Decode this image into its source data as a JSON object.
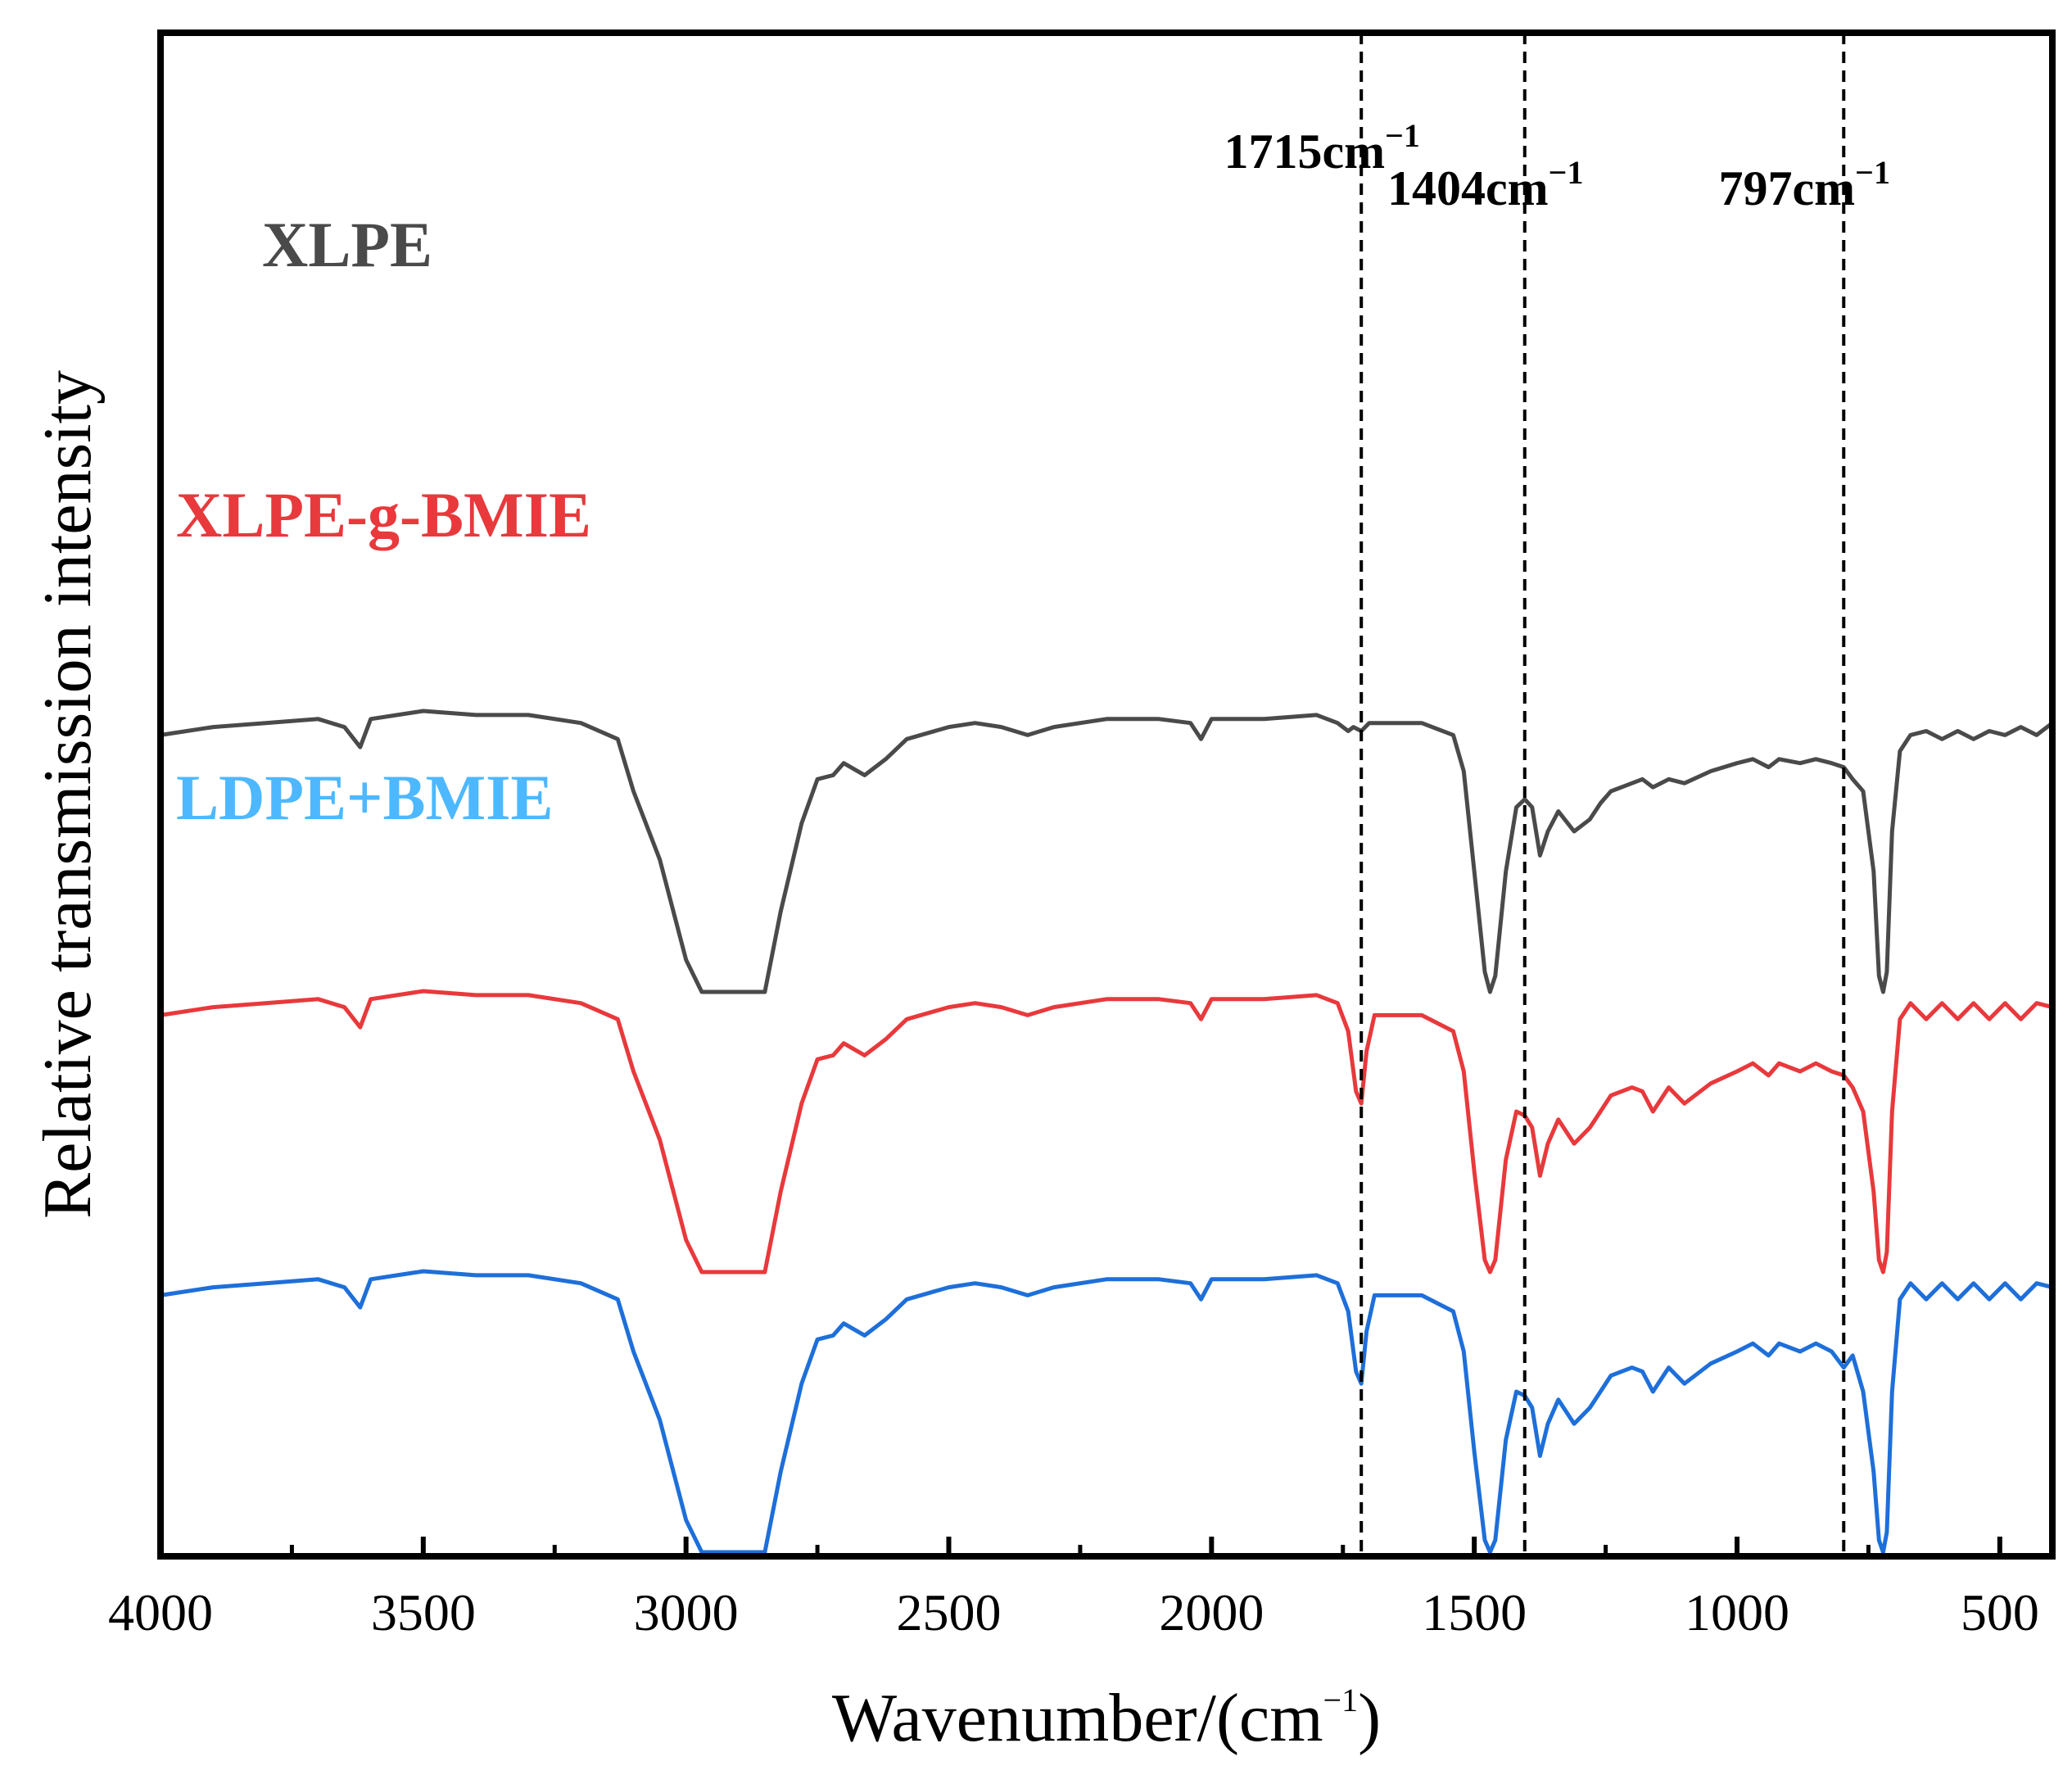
{
  "chart_data": {
    "type": "line",
    "title": "",
    "xlabel": "Wavenumber/(cm",
    "xlabel_sup": "−1",
    "xlabel_close": ")",
    "ylabel": "Relative transmission intensity",
    "xlim": [
      4000,
      400
    ],
    "x_reversed": true,
    "y_ticks_shown": false,
    "grid": false,
    "x_ticks": [
      "4000",
      "3500",
      "3000",
      "2500",
      "2000",
      "1500",
      "1000",
      "500"
    ],
    "x_tick_values": [
      4000,
      3500,
      3000,
      2500,
      2000,
      1500,
      1000,
      500
    ],
    "legend": {
      "placement": "inline-left"
    },
    "reference_lines": [
      {
        "x": 1715,
        "label": "1715cm",
        "sup": "−1"
      },
      {
        "x": 1404,
        "label": "1404cm",
        "sup": "−1"
      },
      {
        "x": 797,
        "label": "797cm",
        "sup": "−1"
      }
    ],
    "series": [
      {
        "name": "XLPE",
        "color": "#4a4a4a",
        "offset": 2,
        "points": [
          [
            4000,
            0.64
          ],
          [
            3900,
            0.66
          ],
          [
            3800,
            0.67
          ],
          [
            3700,
            0.68
          ],
          [
            3650,
            0.66
          ],
          [
            3620,
            0.61
          ],
          [
            3600,
            0.68
          ],
          [
            3500,
            0.7
          ],
          [
            3400,
            0.69
          ],
          [
            3300,
            0.69
          ],
          [
            3200,
            0.67
          ],
          [
            3130,
            0.63
          ],
          [
            3100,
            0.5
          ],
          [
            3050,
            0.33
          ],
          [
            3000,
            0.08
          ],
          [
            2970,
            0.0
          ],
          [
            2850,
            0.0
          ],
          [
            2820,
            0.2
          ],
          [
            2780,
            0.42
          ],
          [
            2750,
            0.53
          ],
          [
            2720,
            0.54
          ],
          [
            2700,
            0.57
          ],
          [
            2660,
            0.54
          ],
          [
            2620,
            0.58
          ],
          [
            2580,
            0.63
          ],
          [
            2500,
            0.66
          ],
          [
            2450,
            0.67
          ],
          [
            2400,
            0.66
          ],
          [
            2350,
            0.64
          ],
          [
            2300,
            0.66
          ],
          [
            2200,
            0.68
          ],
          [
            2100,
            0.68
          ],
          [
            2040,
            0.67
          ],
          [
            2020,
            0.63
          ],
          [
            2000,
            0.68
          ],
          [
            1900,
            0.68
          ],
          [
            1800,
            0.69
          ],
          [
            1760,
            0.67
          ],
          [
            1740,
            0.65
          ],
          [
            1730,
            0.66
          ],
          [
            1715,
            0.65
          ],
          [
            1700,
            0.67
          ],
          [
            1600,
            0.67
          ],
          [
            1540,
            0.64
          ],
          [
            1520,
            0.55
          ],
          [
            1500,
            0.3
          ],
          [
            1480,
            0.05
          ],
          [
            1470,
            0.0
          ],
          [
            1460,
            0.04
          ],
          [
            1440,
            0.3
          ],
          [
            1420,
            0.46
          ],
          [
            1404,
            0.48
          ],
          [
            1390,
            0.46
          ],
          [
            1375,
            0.34
          ],
          [
            1360,
            0.4
          ],
          [
            1340,
            0.45
          ],
          [
            1310,
            0.4
          ],
          [
            1280,
            0.43
          ],
          [
            1260,
            0.47
          ],
          [
            1240,
            0.5
          ],
          [
            1200,
            0.52
          ],
          [
            1180,
            0.53
          ],
          [
            1160,
            0.51
          ],
          [
            1130,
            0.53
          ],
          [
            1100,
            0.52
          ],
          [
            1050,
            0.55
          ],
          [
            1000,
            0.57
          ],
          [
            970,
            0.58
          ],
          [
            940,
            0.56
          ],
          [
            920,
            0.58
          ],
          [
            880,
            0.57
          ],
          [
            850,
            0.58
          ],
          [
            820,
            0.57
          ],
          [
            797,
            0.56
          ],
          [
            780,
            0.53
          ],
          [
            760,
            0.5
          ],
          [
            740,
            0.3
          ],
          [
            730,
            0.04
          ],
          [
            722,
            0.0
          ],
          [
            715,
            0.05
          ],
          [
            705,
            0.4
          ],
          [
            690,
            0.6
          ],
          [
            670,
            0.64
          ],
          [
            640,
            0.65
          ],
          [
            610,
            0.63
          ],
          [
            580,
            0.65
          ],
          [
            550,
            0.63
          ],
          [
            520,
            0.65
          ],
          [
            490,
            0.64
          ],
          [
            460,
            0.66
          ],
          [
            430,
            0.64
          ],
          [
            400,
            0.67
          ]
        ]
      },
      {
        "name": "XLPE-g-BMIE",
        "color": "#e8393c",
        "offset": 1,
        "points": [
          [
            4000,
            0.64
          ],
          [
            3900,
            0.66
          ],
          [
            3800,
            0.67
          ],
          [
            3700,
            0.68
          ],
          [
            3650,
            0.66
          ],
          [
            3620,
            0.61
          ],
          [
            3600,
            0.68
          ],
          [
            3500,
            0.7
          ],
          [
            3400,
            0.69
          ],
          [
            3300,
            0.69
          ],
          [
            3200,
            0.67
          ],
          [
            3130,
            0.63
          ],
          [
            3100,
            0.5
          ],
          [
            3050,
            0.33
          ],
          [
            3000,
            0.08
          ],
          [
            2970,
            0.0
          ],
          [
            2850,
            0.0
          ],
          [
            2820,
            0.2
          ],
          [
            2780,
            0.42
          ],
          [
            2750,
            0.53
          ],
          [
            2720,
            0.54
          ],
          [
            2700,
            0.57
          ],
          [
            2660,
            0.54
          ],
          [
            2620,
            0.58
          ],
          [
            2580,
            0.63
          ],
          [
            2500,
            0.66
          ],
          [
            2450,
            0.67
          ],
          [
            2400,
            0.66
          ],
          [
            2350,
            0.64
          ],
          [
            2300,
            0.66
          ],
          [
            2200,
            0.68
          ],
          [
            2100,
            0.68
          ],
          [
            2040,
            0.67
          ],
          [
            2020,
            0.63
          ],
          [
            2000,
            0.68
          ],
          [
            1900,
            0.68
          ],
          [
            1800,
            0.69
          ],
          [
            1760,
            0.67
          ],
          [
            1740,
            0.6
          ],
          [
            1725,
            0.45
          ],
          [
            1715,
            0.42
          ],
          [
            1705,
            0.55
          ],
          [
            1690,
            0.64
          ],
          [
            1600,
            0.64
          ],
          [
            1540,
            0.6
          ],
          [
            1520,
            0.5
          ],
          [
            1500,
            0.25
          ],
          [
            1480,
            0.03
          ],
          [
            1470,
            0.0
          ],
          [
            1460,
            0.03
          ],
          [
            1440,
            0.28
          ],
          [
            1420,
            0.4
          ],
          [
            1404,
            0.39
          ],
          [
            1390,
            0.36
          ],
          [
            1375,
            0.24
          ],
          [
            1360,
            0.32
          ],
          [
            1340,
            0.38
          ],
          [
            1310,
            0.32
          ],
          [
            1280,
            0.36
          ],
          [
            1260,
            0.4
          ],
          [
            1240,
            0.44
          ],
          [
            1200,
            0.46
          ],
          [
            1180,
            0.45
          ],
          [
            1160,
            0.4
          ],
          [
            1130,
            0.46
          ],
          [
            1100,
            0.42
          ],
          [
            1050,
            0.47
          ],
          [
            1000,
            0.5
          ],
          [
            970,
            0.52
          ],
          [
            940,
            0.49
          ],
          [
            920,
            0.52
          ],
          [
            880,
            0.5
          ],
          [
            850,
            0.52
          ],
          [
            820,
            0.5
          ],
          [
            797,
            0.49
          ],
          [
            780,
            0.46
          ],
          [
            760,
            0.4
          ],
          [
            740,
            0.2
          ],
          [
            730,
            0.03
          ],
          [
            722,
            0.0
          ],
          [
            715,
            0.05
          ],
          [
            705,
            0.4
          ],
          [
            690,
            0.63
          ],
          [
            670,
            0.67
          ],
          [
            640,
            0.63
          ],
          [
            610,
            0.67
          ],
          [
            580,
            0.63
          ],
          [
            550,
            0.67
          ],
          [
            520,
            0.63
          ],
          [
            490,
            0.67
          ],
          [
            460,
            0.63
          ],
          [
            430,
            0.67
          ],
          [
            400,
            0.66
          ]
        ]
      },
      {
        "name": "LDPE+BMIE",
        "color": "#1e6fd9",
        "label_color": "#4db8ff",
        "offset": 0,
        "points": [
          [
            4000,
            0.64
          ],
          [
            3900,
            0.66
          ],
          [
            3800,
            0.67
          ],
          [
            3700,
            0.68
          ],
          [
            3650,
            0.66
          ],
          [
            3620,
            0.61
          ],
          [
            3600,
            0.68
          ],
          [
            3500,
            0.7
          ],
          [
            3400,
            0.69
          ],
          [
            3300,
            0.69
          ],
          [
            3200,
            0.67
          ],
          [
            3130,
            0.63
          ],
          [
            3100,
            0.5
          ],
          [
            3050,
            0.33
          ],
          [
            3000,
            0.08
          ],
          [
            2970,
            0.0
          ],
          [
            2850,
            0.0
          ],
          [
            2820,
            0.2
          ],
          [
            2780,
            0.42
          ],
          [
            2750,
            0.53
          ],
          [
            2720,
            0.54
          ],
          [
            2700,
            0.57
          ],
          [
            2660,
            0.54
          ],
          [
            2620,
            0.58
          ],
          [
            2580,
            0.63
          ],
          [
            2500,
            0.66
          ],
          [
            2450,
            0.67
          ],
          [
            2400,
            0.66
          ],
          [
            2350,
            0.64
          ],
          [
            2300,
            0.66
          ],
          [
            2200,
            0.68
          ],
          [
            2100,
            0.68
          ],
          [
            2040,
            0.67
          ],
          [
            2020,
            0.63
          ],
          [
            2000,
            0.68
          ],
          [
            1900,
            0.68
          ],
          [
            1800,
            0.69
          ],
          [
            1760,
            0.67
          ],
          [
            1740,
            0.6
          ],
          [
            1725,
            0.45
          ],
          [
            1715,
            0.42
          ],
          [
            1705,
            0.55
          ],
          [
            1690,
            0.64
          ],
          [
            1600,
            0.64
          ],
          [
            1540,
            0.6
          ],
          [
            1520,
            0.5
          ],
          [
            1500,
            0.25
          ],
          [
            1480,
            0.03
          ],
          [
            1470,
            0.0
          ],
          [
            1460,
            0.03
          ],
          [
            1440,
            0.28
          ],
          [
            1420,
            0.4
          ],
          [
            1404,
            0.39
          ],
          [
            1390,
            0.36
          ],
          [
            1375,
            0.24
          ],
          [
            1360,
            0.32
          ],
          [
            1340,
            0.38
          ],
          [
            1310,
            0.32
          ],
          [
            1280,
            0.36
          ],
          [
            1260,
            0.4
          ],
          [
            1240,
            0.44
          ],
          [
            1200,
            0.46
          ],
          [
            1180,
            0.45
          ],
          [
            1160,
            0.4
          ],
          [
            1130,
            0.46
          ],
          [
            1100,
            0.42
          ],
          [
            1050,
            0.47
          ],
          [
            1000,
            0.5
          ],
          [
            970,
            0.52
          ],
          [
            940,
            0.49
          ],
          [
            920,
            0.52
          ],
          [
            880,
            0.5
          ],
          [
            850,
            0.52
          ],
          [
            820,
            0.5
          ],
          [
            797,
            0.46
          ],
          [
            780,
            0.49
          ],
          [
            760,
            0.4
          ],
          [
            740,
            0.2
          ],
          [
            730,
            0.03
          ],
          [
            722,
            0.0
          ],
          [
            715,
            0.05
          ],
          [
            705,
            0.4
          ],
          [
            690,
            0.63
          ],
          [
            670,
            0.67
          ],
          [
            640,
            0.63
          ],
          [
            610,
            0.67
          ],
          [
            580,
            0.63
          ],
          [
            550,
            0.67
          ],
          [
            520,
            0.63
          ],
          [
            490,
            0.67
          ],
          [
            460,
            0.63
          ],
          [
            430,
            0.67
          ],
          [
            400,
            0.66
          ]
        ]
      }
    ]
  }
}
